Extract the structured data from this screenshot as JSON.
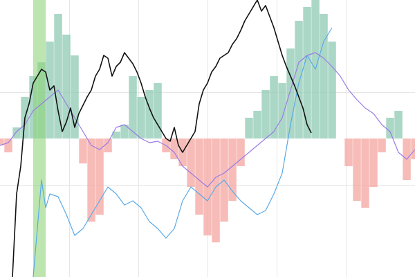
{
  "colors": {
    "background": "#ffffff",
    "grid": "#e6e6e6",
    "positive_bars": "#8fc9b3",
    "negative_bars": "#f4a6a0",
    "highlight_band": "#8fd47a",
    "price_line": "#111111",
    "oscillator_line": "#9a7be6",
    "secondary_line": "#5aa9e6"
  },
  "chart_data": {
    "type": "line",
    "title": "",
    "xlabel": "",
    "ylabel": "",
    "grid": true,
    "legend": "none",
    "x_range": [
      0,
      100
    ],
    "highlight_band": {
      "x_start": 8.0,
      "x_end": 11.0
    },
    "histogram": {
      "baseline": 0,
      "y_range": [
        -100,
        100
      ],
      "x": [
        0,
        2,
        4,
        6,
        8,
        10,
        12,
        14,
        16,
        18,
        20,
        22,
        24,
        26,
        28,
        30,
        32,
        34,
        36,
        38,
        40,
        42,
        44,
        46,
        48,
        50,
        52,
        54,
        56,
        58,
        60,
        62,
        64,
        66,
        68,
        70,
        72,
        74,
        76,
        78,
        80,
        82,
        84,
        86,
        88,
        90,
        92,
        94,
        96,
        98,
        100
      ],
      "values": [
        -5,
        -10,
        8,
        30,
        45,
        55,
        70,
        90,
        75,
        60,
        -18,
        -60,
        -55,
        -10,
        5,
        10,
        45,
        30,
        35,
        40,
        -10,
        -15,
        -20,
        -35,
        -55,
        -70,
        -75,
        -60,
        -45,
        -20,
        15,
        20,
        35,
        45,
        40,
        65,
        85,
        95,
        100,
        90,
        70,
        0,
        -20,
        -45,
        -50,
        -35,
        -10,
        15,
        20,
        -30,
        -15
      ]
    },
    "series": [
      {
        "key": "price",
        "x": [
          3,
          4,
          5,
          6,
          7,
          8,
          9,
          10,
          11,
          12,
          13,
          14,
          15,
          16,
          17,
          18,
          19,
          20,
          21,
          22,
          23,
          24,
          25,
          26,
          27,
          28,
          29,
          30,
          31,
          32,
          33,
          34,
          35,
          36,
          37,
          38,
          39,
          40,
          41,
          42,
          43,
          44,
          45,
          46,
          47,
          48,
          49,
          50,
          51,
          52,
          53,
          54,
          55,
          56,
          57,
          58,
          59,
          60,
          61,
          62,
          63,
          64,
          65,
          66,
          67,
          68,
          69,
          70,
          71,
          72,
          73,
          74,
          75
        ],
        "values": [
          -100,
          -40,
          -20,
          15,
          25,
          40,
          45,
          50,
          48,
          35,
          38,
          20,
          5,
          12,
          22,
          8,
          18,
          24,
          30,
          35,
          45,
          50,
          60,
          58,
          45,
          52,
          55,
          62,
          58,
          54,
          48,
          40,
          30,
          22,
          15,
          10,
          5,
          0,
          -2,
          8,
          -5,
          -10,
          -5,
          0,
          5,
          25,
          35,
          40,
          48,
          52,
          58,
          60,
          62,
          68,
          72,
          78,
          85,
          90,
          95,
          100,
          92,
          96,
          88,
          80,
          70,
          60,
          52,
          45,
          38,
          30,
          22,
          10,
          4
        ]
      },
      {
        "key": "oscillator",
        "x": [
          0,
          2,
          4,
          6,
          8,
          10,
          12,
          14,
          16,
          18,
          20,
          22,
          24,
          26,
          28,
          30,
          32,
          34,
          36,
          38,
          40,
          42,
          44,
          46,
          48,
          50,
          52,
          54,
          56,
          58,
          60,
          62,
          64,
          66,
          68,
          70,
          72,
          74,
          76,
          78,
          80,
          82,
          84,
          86,
          88,
          90,
          92,
          94,
          96,
          98,
          100
        ],
        "values": [
          -5,
          -3,
          5,
          10,
          20,
          25,
          30,
          35,
          25,
          15,
          5,
          -5,
          -8,
          -3,
          8,
          10,
          5,
          0,
          -3,
          -2,
          -5,
          -10,
          -20,
          -25,
          -30,
          -35,
          -28,
          -25,
          -20,
          -15,
          -10,
          -5,
          0,
          5,
          15,
          35,
          55,
          60,
          62,
          58,
          52,
          45,
          35,
          28,
          22,
          18,
          10,
          5,
          -10,
          -15,
          -8
        ]
      },
      {
        "key": "secondary",
        "x": [
          8,
          10,
          11,
          12,
          14,
          16,
          18,
          20,
          22,
          24,
          26,
          28,
          30,
          32,
          34,
          36,
          38,
          40,
          42,
          44,
          46,
          48,
          50,
          52,
          54,
          56,
          58,
          60,
          62,
          64,
          66,
          68,
          70,
          72,
          74,
          75,
          76,
          78,
          80
        ],
        "values": [
          -100,
          -30,
          -50,
          -40,
          -42,
          -55,
          -70,
          -65,
          -55,
          -45,
          -35,
          -40,
          -48,
          -45,
          -50,
          -60,
          -65,
          -72,
          -65,
          -45,
          -35,
          -40,
          -45,
          -35,
          -30,
          -38,
          -45,
          -50,
          -55,
          -52,
          -40,
          -25,
          10,
          40,
          60,
          55,
          50,
          70,
          80
        ]
      }
    ]
  }
}
